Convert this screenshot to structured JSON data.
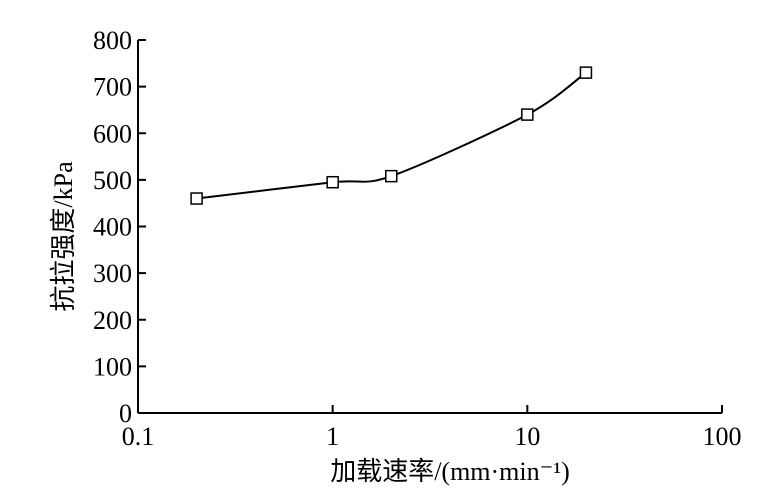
{
  "chart_data": {
    "type": "line",
    "xscale": "log",
    "xlim": [
      0.1,
      100
    ],
    "ylim": [
      0,
      800
    ],
    "xticks": [
      0.1,
      1,
      10,
      100
    ],
    "xtick_labels": [
      "0.1",
      "1",
      "10",
      "100"
    ],
    "yticks": [
      0,
      100,
      200,
      300,
      400,
      500,
      600,
      700,
      800
    ],
    "ytick_labels": [
      "0",
      "100",
      "200",
      "300",
      "400",
      "500",
      "600",
      "700",
      "800"
    ],
    "xlabel": "加载速率/(mm·min⁻¹)",
    "ylabel": "抗拉强度/kPa",
    "grid": false,
    "series": [
      {
        "marker": "open-square",
        "x": [
          0.2,
          1,
          2,
          10,
          20
        ],
        "y": [
          460,
          495,
          508,
          640,
          730
        ]
      }
    ]
  }
}
